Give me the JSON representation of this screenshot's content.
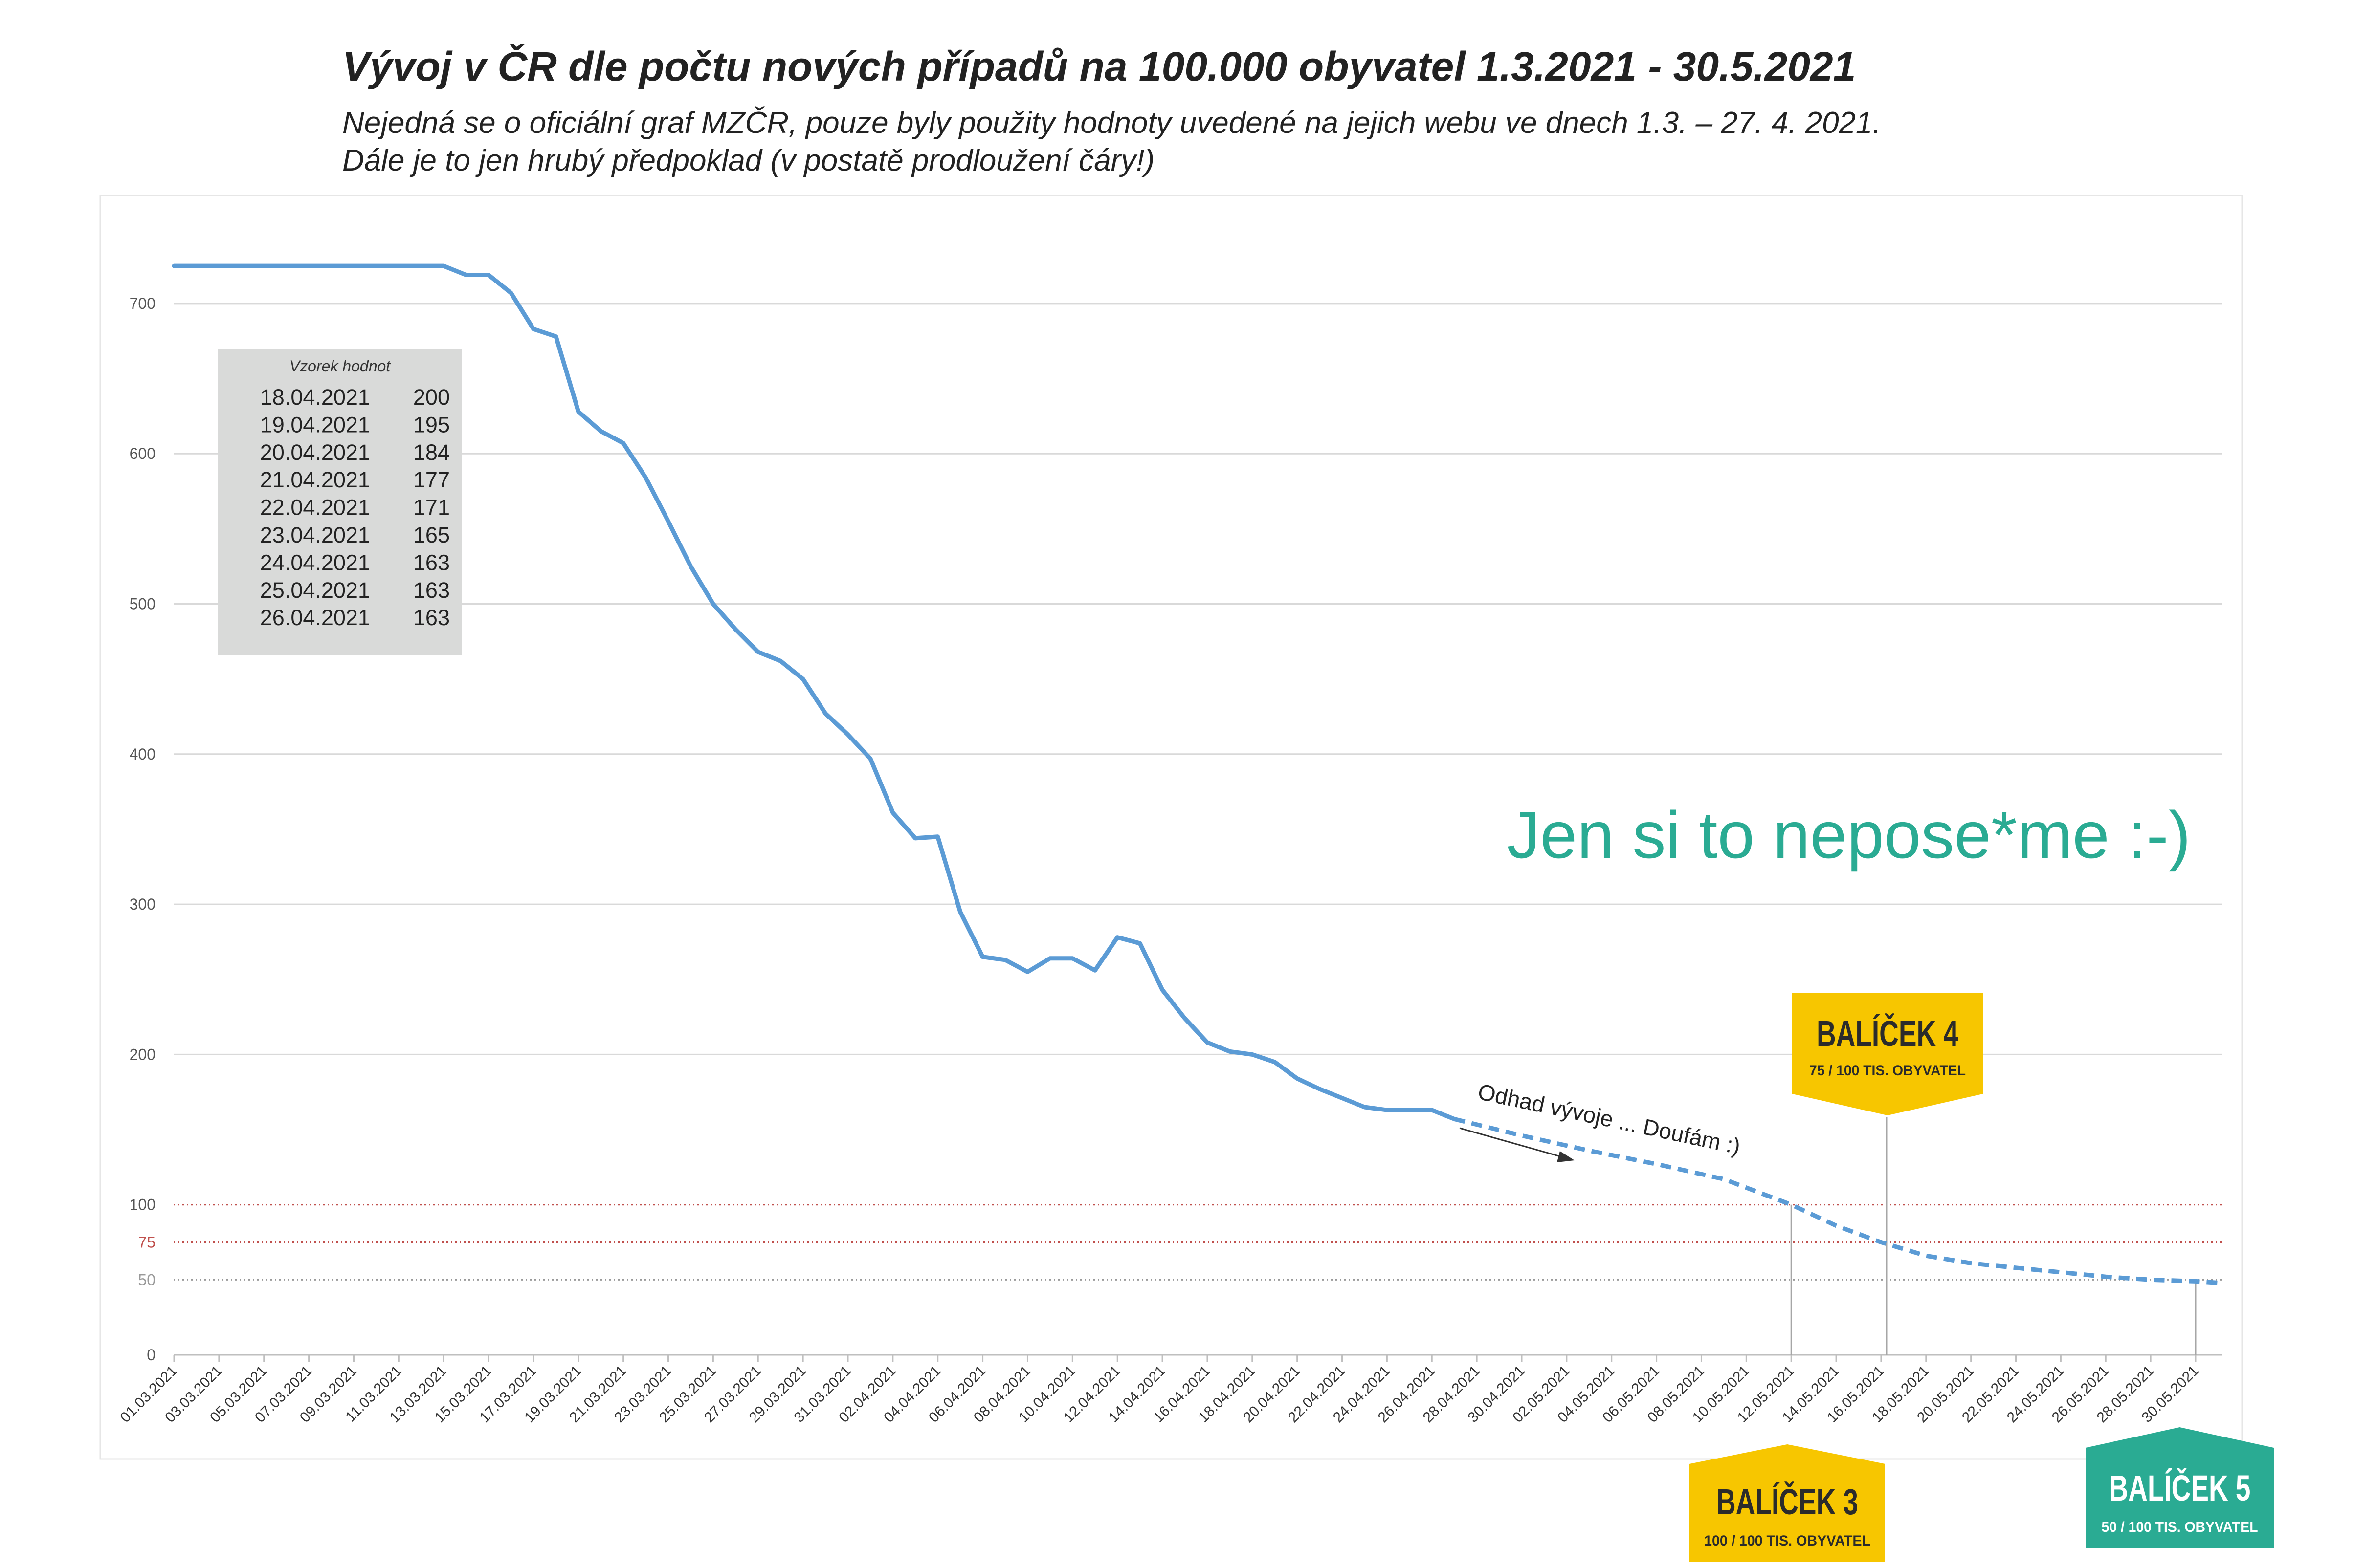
{
  "header": {
    "title": "Vývoj v ČR dle počtu nových případů na 100.000 obyvatel 1.3.2021 - 30.5.2021",
    "subtitle_line1": "Nejedná se o oficiální graf MZČR, pouze byly použity hodnoty uvedené na jejich webu ve dnech 1.3. – 27. 4. 2021.",
    "subtitle_line2": "Dále je to jen hrubý předpoklad (v postatě prodloužení čáry!)"
  },
  "chart_data": {
    "type": "line",
    "title": "Vývoj v ČR dle počtu nových případů na 100.000 obyvatel 1.3.2021 - 30.5.2021",
    "xlabel": "",
    "ylabel": "",
    "ylim": [
      0,
      725
    ],
    "yticks": [
      0,
      100,
      200,
      300,
      400,
      500,
      600,
      700
    ],
    "grid": true,
    "x_tick_labels": [
      "01.03.2021",
      "03.03.2021",
      "05.03.2021",
      "07.03.2021",
      "09.03.2021",
      "11.03.2021",
      "13.03.2021",
      "15.03.2021",
      "17.03.2021",
      "19.03.2021",
      "21.03.2021",
      "23.03.2021",
      "25.03.2021",
      "27.03.2021",
      "29.03.2021",
      "31.03.2021",
      "02.04.2021",
      "04.04.2021",
      "06.04.2021",
      "08.04.2021",
      "10.04.2021",
      "12.04.2021",
      "14.04.2021",
      "16.04.2021",
      "18.04.2021",
      "20.04.2021",
      "22.04.2021",
      "24.04.2021",
      "26.04.2021",
      "28.04.2021",
      "30.04.2021",
      "02.05.2021",
      "04.05.2021",
      "06.05.2021",
      "08.05.2021",
      "10.05.2021",
      "12.05.2021",
      "14.05.2021",
      "16.05.2021",
      "18.05.2021",
      "20.05.2021",
      "22.05.2021",
      "24.05.2021",
      "26.05.2021",
      "28.05.2021",
      "30.05.2021"
    ],
    "series": [
      {
        "style": "solid",
        "color": "#5b9bd5",
        "x": [
          "01.03.2021",
          "02.03.2021",
          "03.03.2021",
          "04.03.2021",
          "05.03.2021",
          "06.03.2021",
          "07.03.2021",
          "08.03.2021",
          "09.03.2021",
          "10.03.2021",
          "11.03.2021",
          "12.03.2021",
          "13.03.2021",
          "14.03.2021",
          "15.03.2021",
          "16.03.2021",
          "17.03.2021",
          "18.03.2021",
          "19.03.2021",
          "20.03.2021",
          "21.03.2021",
          "22.03.2021",
          "23.03.2021",
          "24.03.2021",
          "25.03.2021",
          "26.03.2021",
          "27.03.2021",
          "28.03.2021",
          "29.03.2021",
          "30.03.2021",
          "31.03.2021",
          "01.04.2021",
          "02.04.2021",
          "03.04.2021",
          "04.04.2021",
          "05.04.2021",
          "06.04.2021",
          "07.04.2021",
          "08.04.2021",
          "09.04.2021",
          "10.04.2021",
          "11.04.2021",
          "12.04.2021",
          "13.04.2021",
          "14.04.2021",
          "15.04.2021",
          "16.04.2021",
          "17.04.2021",
          "18.04.2021",
          "19.04.2021",
          "20.04.2021",
          "21.04.2021",
          "22.04.2021",
          "23.04.2021",
          "24.04.2021",
          "25.04.2021",
          "26.04.2021",
          "27.04.2021"
        ],
        "y": [
          725,
          725,
          725,
          725,
          725,
          725,
          725,
          725,
          725,
          725,
          725,
          725,
          725,
          719,
          719,
          707,
          683,
          678,
          628,
          615,
          607,
          584,
          555,
          525,
          500,
          483,
          468,
          462,
          450,
          427,
          413,
          397,
          361,
          344,
          345,
          295,
          265,
          263,
          255,
          264,
          264,
          256,
          278,
          274,
          243,
          224,
          208,
          202,
          200,
          195,
          184,
          177,
          171,
          165,
          163,
          163,
          163,
          157
        ]
      },
      {
        "style": "dashed",
        "color": "#5b9bd5",
        "x": [
          "27.04.2021",
          "30.04.2021",
          "03.05.2021",
          "06.05.2021",
          "09.05.2021",
          "12.05.2021",
          "14.05.2021",
          "16.05.2021",
          "18.05.2021",
          "20.05.2021",
          "22.05.2021",
          "24.05.2021",
          "26.05.2021",
          "28.05.2021",
          "30.05.2021",
          "31.05.2021"
        ],
        "y": [
          157,
          146,
          136,
          127,
          117,
          100,
          86,
          75,
          66,
          61,
          58,
          55,
          52,
          50,
          49,
          48
        ]
      }
    ],
    "reference_lines": [
      {
        "value": 100,
        "label": "100",
        "color": "#c0504d"
      },
      {
        "value": 75,
        "label": "75",
        "color": "#c0504d"
      },
      {
        "value": 50,
        "label": "50",
        "color": "#999999"
      }
    ],
    "sample_table": {
      "title": "Vzorek hodnot",
      "rows": [
        {
          "date": "18.04.2021",
          "value": "200"
        },
        {
          "date": "19.04.2021",
          "value": "195"
        },
        {
          "date": "20.04.2021",
          "value": "184"
        },
        {
          "date": "21.04.2021",
          "value": "177"
        },
        {
          "date": "22.04.2021",
          "value": "171"
        },
        {
          "date": "23.04.2021",
          "value": "165"
        },
        {
          "date": "24.04.2021",
          "value": "163"
        },
        {
          "date": "25.04.2021",
          "value": "163"
        },
        {
          "date": "26.04.2021",
          "value": "163"
        }
      ]
    },
    "annotations": {
      "slogan": "Jen si to nepose*me :-)",
      "slogan_color": "#2aab93",
      "estimate_label": "Odhad vývoje ... Doufám :)"
    },
    "markers": [
      {
        "name": "BALÍČEK 3",
        "sub": "100 / 100 TIS. OBYVATEL",
        "date": "12.05.2021",
        "color": "#f7c600"
      },
      {
        "name": "BALÍČEK 4",
        "sub": "75 / 100 TIS. OBYVATEL",
        "date": "17.05.2021",
        "color": "#f7c600"
      },
      {
        "name": "BALÍČEK 5",
        "sub": "50 / 100 TIS. OBYVATEL",
        "date": "30.05.2021",
        "color": "#2aab93"
      }
    ]
  }
}
